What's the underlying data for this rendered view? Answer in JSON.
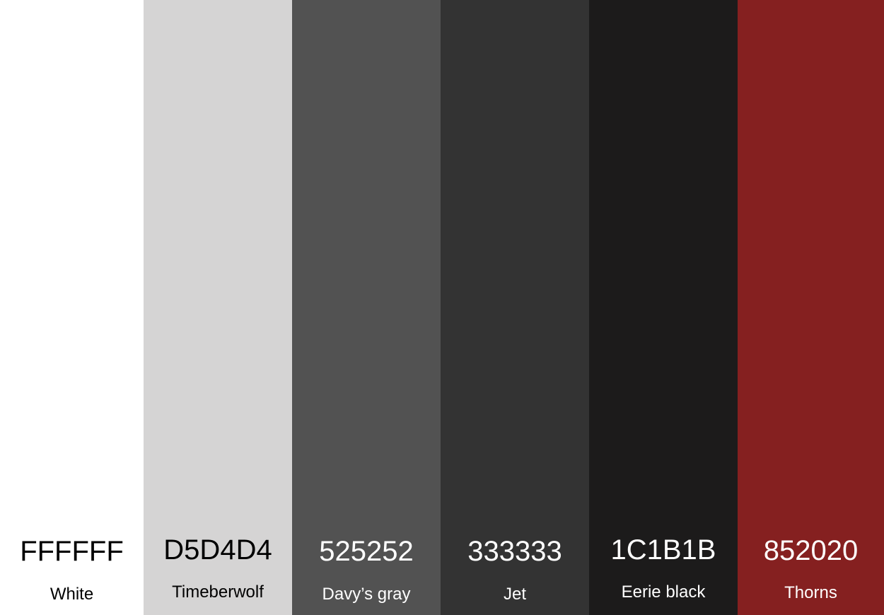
{
  "swatches": [
    {
      "hex": "FFFFFF",
      "name": "White",
      "color": "#FFFFFF",
      "text_color": "#000000"
    },
    {
      "hex": "D5D4D4",
      "name": "Timeberwolf",
      "color": "#D5D4D4",
      "text_color": "#000000"
    },
    {
      "hex": "525252",
      "name": "Davy’s gray",
      "color": "#525252",
      "text_color": "#FFFFFF"
    },
    {
      "hex": "333333",
      "name": "Jet",
      "color": "#333333",
      "text_color": "#FFFFFF"
    },
    {
      "hex": "1C1B1B",
      "name": "Eerie black",
      "color": "#1C1B1B",
      "text_color": "#FFFFFF"
    },
    {
      "hex": "852020",
      "name": "Thorns",
      "color": "#852020",
      "text_color": "#FFFFFF"
    }
  ]
}
